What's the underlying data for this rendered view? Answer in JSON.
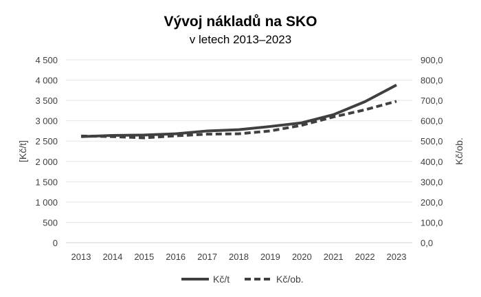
{
  "chart_data": {
    "type": "line",
    "title": "Vývoj nákladů na SKO",
    "subtitle": "v letech 2013–2023",
    "x": [
      "2013",
      "2014",
      "2015",
      "2016",
      "2017",
      "2018",
      "2019",
      "2020",
      "2021",
      "2022",
      "2023"
    ],
    "ylabel": "[Kč/t]",
    "y2label": "Kč/ob.",
    "ylim": [
      0,
      4500
    ],
    "y2lim": [
      0,
      900
    ],
    "yticks": [
      "0",
      "500",
      "1 000",
      "1 500",
      "2 000",
      "2 500",
      "3 000",
      "3 500",
      "4 000",
      "4 500"
    ],
    "y2ticks": [
      "0,0",
      "100,0",
      "200,0",
      "300,0",
      "400,0",
      "500,0",
      "600,0",
      "700,0",
      "800,0",
      "900,0"
    ],
    "grid": true,
    "legend": "bottom",
    "series": [
      {
        "name": "Kč/t",
        "axis": "left",
        "style": "solid",
        "color": "#404040",
        "values": [
          2610,
          2640,
          2650,
          2680,
          2750,
          2780,
          2860,
          2950,
          3150,
          3470,
          3880
        ]
      },
      {
        "name": "Kč/ob.",
        "axis": "right",
        "style": "dashed",
        "color": "#404040",
        "values": [
          525,
          522,
          516,
          526,
          534,
          536,
          550,
          578,
          619,
          654,
          696
        ]
      }
    ]
  }
}
